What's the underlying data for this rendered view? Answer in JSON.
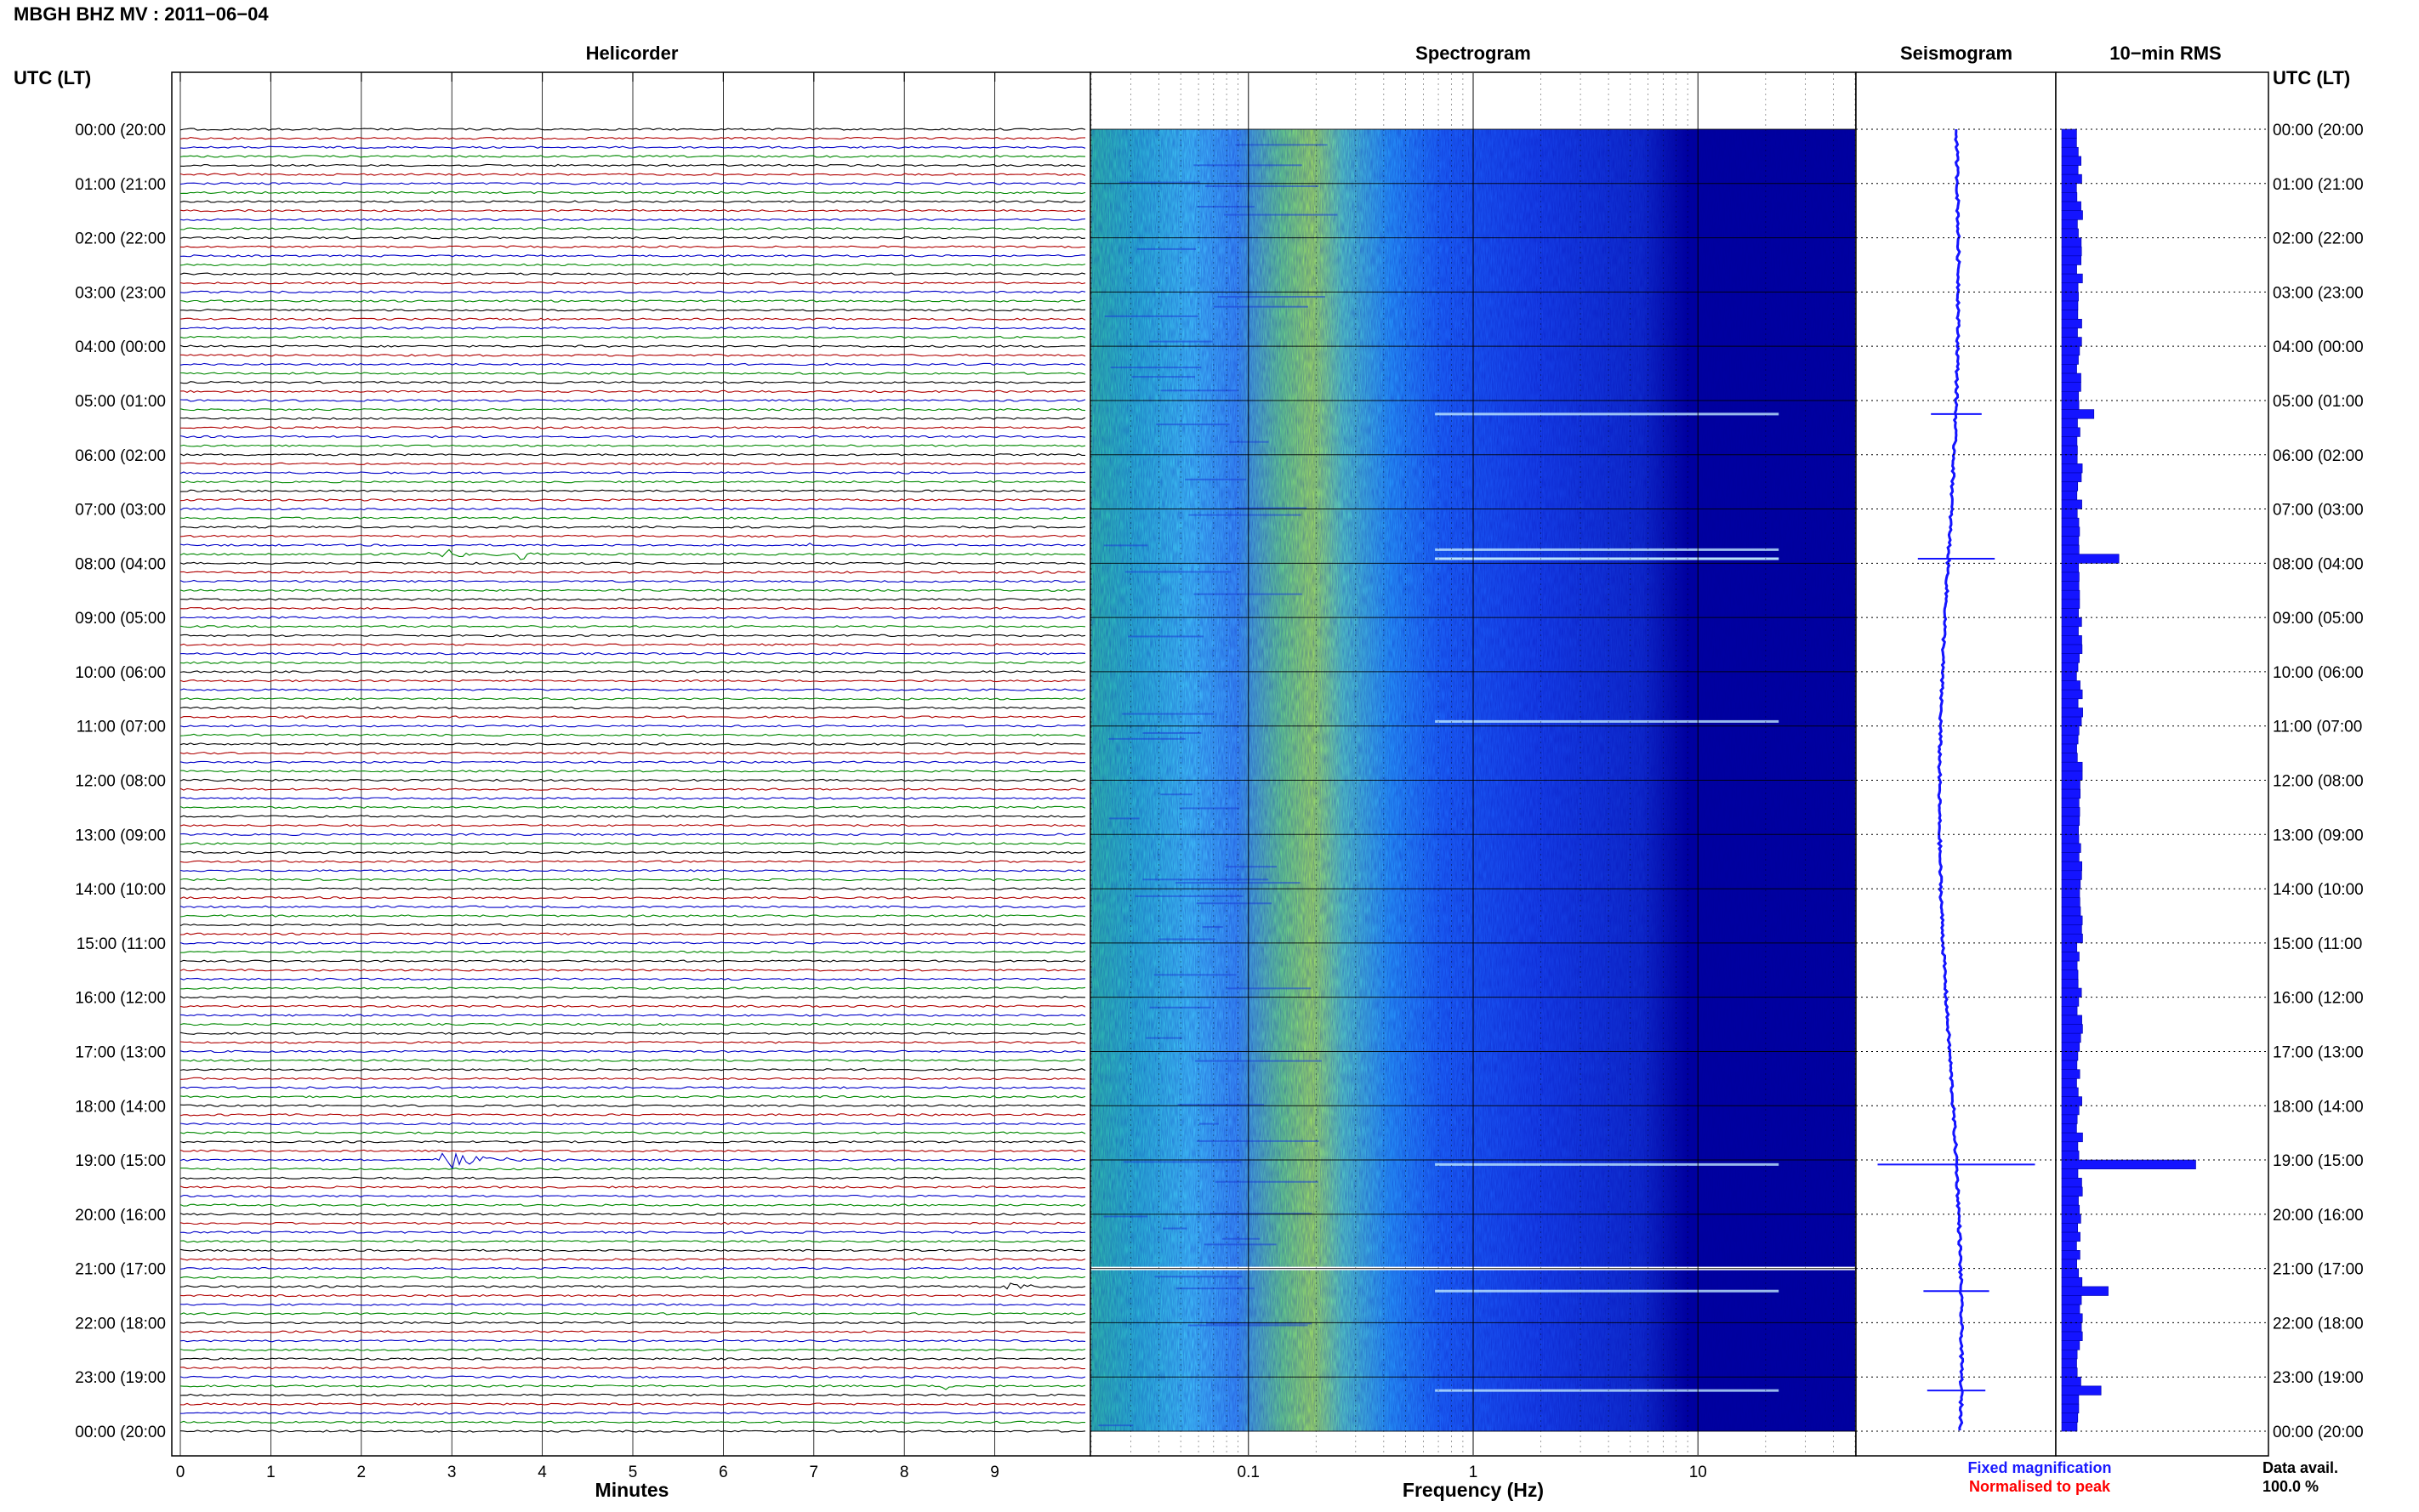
{
  "header": {
    "title": "MBGH BHZ MV : 2011−06−04",
    "utc_lt_left": "UTC (LT)",
    "utc_lt_right": "UTC (LT)"
  },
  "panels": {
    "helicorder": "Helicorder",
    "spectrogram": "Spectrogram",
    "seismogram": "Seismogram",
    "rms": "10−min RMS"
  },
  "axes": {
    "x_helicorder_label": "Minutes",
    "x_spectrogram_label": "Frequency (Hz)",
    "minute_ticks": [
      "0",
      "1",
      "2",
      "3",
      "4",
      "5",
      "6",
      "7",
      "8",
      "9"
    ],
    "freq_ticks": [
      "0.1",
      "1",
      "10"
    ]
  },
  "legend": {
    "fixed": "Fixed magnification",
    "normalised": "Normalised to peak",
    "fixed_color": "#1a1aff",
    "normalised_color": "#ff0000"
  },
  "availability": {
    "label": "Data avail.",
    "value": "100.0 %"
  },
  "colors": {
    "trace_cycle": [
      "#000000",
      "#b00000",
      "#0000c8",
      "#008800"
    ],
    "signal_blue": "#1414ff",
    "spectrogram_low": "#0000a0",
    "spectrogram_high": "#c0ff40"
  },
  "chart_data": [
    {
      "type": "line",
      "panel": "Helicorder",
      "xlabel": "Minutes",
      "xlim": [
        0,
        10
      ],
      "hour_labels": [
        "00:00 (20:00",
        "01:00 (21:00",
        "02:00 (22:00",
        "03:00 (23:00",
        "04:00 (00:00",
        "05:00 (01:00",
        "06:00 (02:00",
        "07:00 (03:00",
        "08:00 (04:00",
        "09:00 (05:00",
        "10:00 (06:00",
        "11:00 (07:00",
        "12:00 (08:00",
        "13:00 (09:00",
        "14:00 (10:00",
        "15:00 (11:00",
        "16:00 (12:00",
        "17:00 (13:00",
        "18:00 (14:00",
        "19:00 (15:00",
        "20:00 (16:00",
        "21:00 (17:00",
        "22:00 (18:00",
        "23:00 (19:00",
        "00:00 (20:00"
      ],
      "rows_per_hour": 6,
      "events": [
        {
          "row": 31,
          "minute": 4.85,
          "duration_min": 0.25,
          "amplitude": 0.7
        },
        {
          "row": 47,
          "minute": 2.7,
          "duration_min": 1.1,
          "amplitude": 1.2
        },
        {
          "row": 47,
          "minute": 3.7,
          "duration_min": 0.6,
          "amplitude": 0.9
        },
        {
          "row": 46,
          "minute": 6.9,
          "duration_min": 0.4,
          "amplitude": 0.3
        },
        {
          "row": 65,
          "minute": 1.3,
          "duration_min": 0.3,
          "amplitude": 0.25
        },
        {
          "row": 114,
          "minute": 2.8,
          "duration_min": 1.6,
          "amplitude": 1.6
        },
        {
          "row": 128,
          "minute": 9.1,
          "duration_min": 0.6,
          "amplitude": 0.9
        },
        {
          "row": 139,
          "minute": 8.4,
          "duration_min": 0.7,
          "amplitude": 0.6
        }
      ]
    },
    {
      "type": "heatmap",
      "panel": "Spectrogram",
      "xlabel": "Frequency (Hz)",
      "x_scale": "log",
      "xlim": [
        0.02,
        50
      ]
    },
    {
      "type": "line",
      "panel": "Seismogram"
    },
    {
      "type": "bar",
      "panel": "10−min RMS",
      "rows_per_hour": 6,
      "baseline": 1,
      "values": [
        {
          "row": 31,
          "value": 1.8
        },
        {
          "row": 47,
          "value": 3.2
        },
        {
          "row": 114,
          "value": 7.5
        },
        {
          "row": 128,
          "value": 2.6
        },
        {
          "row": 139,
          "value": 2.2
        }
      ]
    }
  ]
}
